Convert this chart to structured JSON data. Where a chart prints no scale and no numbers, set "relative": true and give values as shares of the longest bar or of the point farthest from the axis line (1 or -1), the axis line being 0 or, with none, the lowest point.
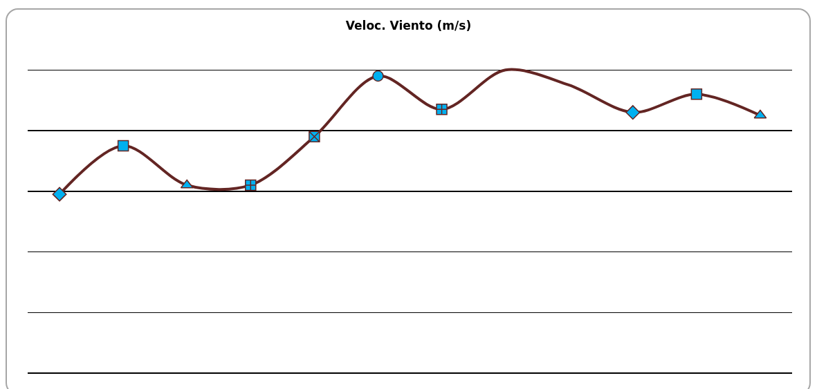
{
  "chart_data": {
    "type": "line",
    "title": "Veloc. Viento (m/s)",
    "relative": true,
    "grid": "y",
    "line_style": "solid",
    "marker": [
      "diamond",
      "square",
      "triangle",
      "cross",
      "star",
      "circle",
      "cross",
      "none",
      "none",
      "diamond",
      "square",
      "triangle"
    ],
    "categories": [
      null,
      null,
      null,
      null,
      null,
      null,
      null,
      null,
      null,
      null,
      null,
      null
    ],
    "series": [
      {
        "color": "#632523",
        "values": [
          0.59,
          0.75,
          0.62,
          0.62,
          0.78,
          0.98,
          0.87,
          1,
          0.95,
          0.86,
          0.92,
          0.85
        ]
      }
    ]
  }
}
